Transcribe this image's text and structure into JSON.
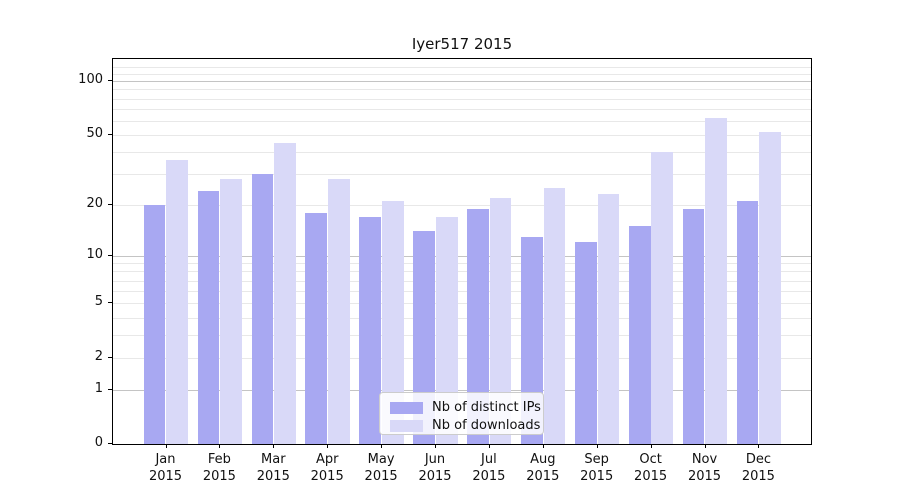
{
  "chart_data": {
    "type": "bar",
    "title": "Iyer517 2015",
    "categories": [
      "Jan 2015",
      "Feb 2015",
      "Mar 2015",
      "Apr 2015",
      "May 2015",
      "Jun 2015",
      "Jul 2015",
      "Aug 2015",
      "Sep 2015",
      "Oct 2015",
      "Nov 2015",
      "Dec 2015"
    ],
    "series": [
      {
        "name": "Nb of distinct IPs",
        "color": "#a8a8f2",
        "values": [
          20,
          24,
          30,
          18,
          17,
          14,
          19,
          13,
          12,
          15,
          19,
          21
        ]
      },
      {
        "name": "Nb of downloads",
        "color": "#d9d9f8",
        "values": [
          36,
          28,
          45,
          28,
          21,
          17,
          22,
          25,
          23,
          40,
          62,
          52
        ]
      }
    ],
    "xlabel": "",
    "ylabel": "",
    "yscale": "log10(1+v)",
    "yticks": [
      0,
      1,
      2,
      5,
      10,
      20,
      50,
      100
    ],
    "yticks_minor": [
      3,
      4,
      6,
      7,
      8,
      9,
      30,
      40,
      60,
      70,
      80,
      90,
      110,
      120
    ],
    "ylim": [
      0,
      133
    ],
    "grid": true,
    "legend_position": "lower center"
  },
  "colors": {
    "grid_decade": "#c4c4c4",
    "grid_other": "#e8e8e8",
    "axis": "#000000",
    "background": "#ffffff"
  }
}
